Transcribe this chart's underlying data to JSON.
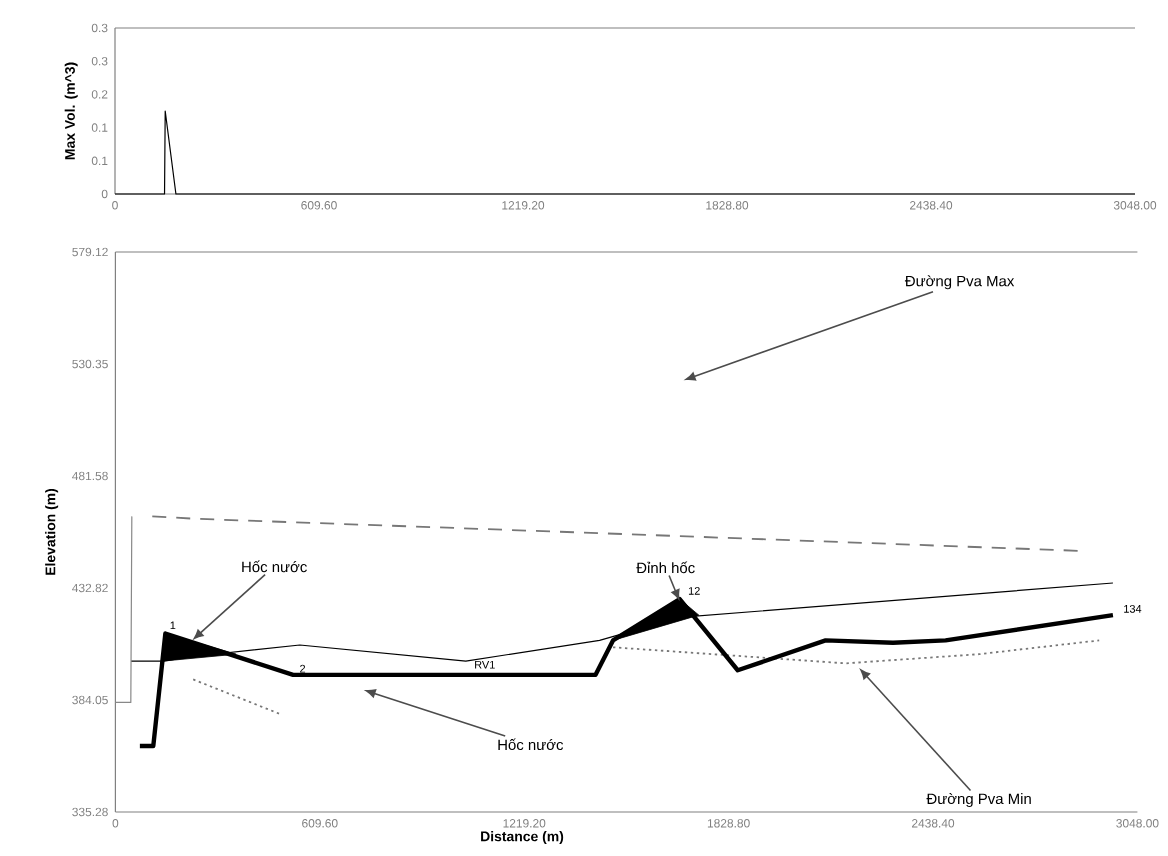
{
  "chart_data": [
    {
      "type": "line",
      "ylabel": "Max Vol. (m^3)",
      "xlim": [
        0,
        3048
      ],
      "ylim": [
        0,
        0.33
      ],
      "xticks": [
        0,
        {
          "value": 609.6,
          "label": "609.60"
        },
        {
          "value": 1219.2,
          "label": "1219.20"
        },
        {
          "value": 1828.8,
          "label": "1828.80"
        },
        {
          "value": 2438.4,
          "label": "2438.40"
        },
        {
          "value": 3048,
          "label": "3048.00"
        }
      ],
      "yticks": [
        0,
        {
          "value": 0.066,
          "label": "0.1"
        },
        {
          "value": 0.132,
          "label": "0.1"
        },
        {
          "value": 0.198,
          "label": "0.2"
        },
        {
          "value": 0.264,
          "label": "0.3"
        },
        {
          "value": 0.33,
          "label": "0.3"
        }
      ],
      "series": [
        {
          "color": "#000000",
          "x": [
            0,
            148,
            150,
            182,
            3048
          ],
          "values": [
            0,
            0,
            0.165,
            0,
            0
          ]
        }
      ]
    },
    {
      "type": "line",
      "xlabel": "Distance (m)",
      "ylabel": "Elevation (m)",
      "xlim": [
        0,
        3048
      ],
      "ylim": [
        335.28,
        579.12
      ],
      "xticks": [
        0,
        {
          "value": 609.6,
          "label": "609.60"
        },
        {
          "value": 1219.2,
          "label": "1219.20"
        },
        {
          "value": 1828.8,
          "label": "1828.80"
        },
        {
          "value": 2438.4,
          "label": "2438.40"
        },
        {
          "value": 3048,
          "label": "3048.00"
        }
      ],
      "yticks": [
        {
          "value": 335.28,
          "label": "335.28"
        },
        {
          "value": 384.05,
          "label": "384.05"
        },
        {
          "value": 432.82,
          "label": "432.82"
        },
        {
          "value": 481.58,
          "label": "481.58"
        },
        {
          "value": 530.35,
          "label": "530.35"
        },
        {
          "value": 579.12,
          "label": "579.12"
        }
      ],
      "series": [
        {
          "type": "area",
          "color": "#000000",
          "x": [
            143,
            149,
            360
          ],
          "values": [
            401,
            413,
            404
          ]
        },
        {
          "type": "area",
          "color": "#000000",
          "x": [
            1484,
            1683,
            1740
          ],
          "values": [
            410,
            428,
            421
          ]
        },
        {
          "color": "#888888",
          "x": [
            0,
            46,
            49
          ],
          "values": [
            383,
            383,
            464
          ]
        },
        {
          "color": "#000000",
          "x": [
            48,
            143,
            232,
            550,
            1045,
            1444,
            1683,
            2975
          ],
          "values": [
            401,
            401,
            403,
            408,
            401,
            410,
            420,
            435
          ]
        },
        {
          "color": "#777777",
          "line_style": "dashed",
          "x": [
            110,
            232,
            1385,
            2874
          ],
          "values": [
            464,
            463,
            457,
            449
          ]
        },
        {
          "color": "#777777",
          "line_style": "dotted",
          "x": [
            232,
            490,
            1000,
            1484,
            2178,
            2576,
            2934
          ],
          "values": [
            393,
            378,
            null,
            407,
            400,
            404,
            410
          ]
        },
        {
          "color": "#000000",
          "x": [
            73,
            113,
            149,
            530,
            1432,
            1484,
            1683,
            1856,
            2118,
            2319,
            2476,
            2975
          ],
          "values": [
            364,
            364,
            413,
            395,
            395,
            410,
            428,
            397,
            410,
            409,
            410,
            421
          ]
        }
      ],
      "annotations": [
        {
          "text": "Hốc nước",
          "x": 229,
          "y": 410
        },
        "Hốc nước",
        {
          "text": "Đỉnh hốc",
          "x": 1683,
          "y": 427
        },
        "Đường  Pva Max",
        {
          "text": "Đường  Pva Min",
          "x": 2218,
          "y": 398
        },
        {
          "text": "1",
          "x": 149,
          "y": 413
        },
        {
          "text": "2",
          "x": 530,
          "y": 395
        },
        {
          "text": "RV1",
          "x": 1045,
          "y": 395
        },
        {
          "text": "12",
          "x": 1683,
          "y": 428
        },
        {
          "text": "134",
          "x": 2975,
          "y": 421
        }
      ]
    }
  ]
}
